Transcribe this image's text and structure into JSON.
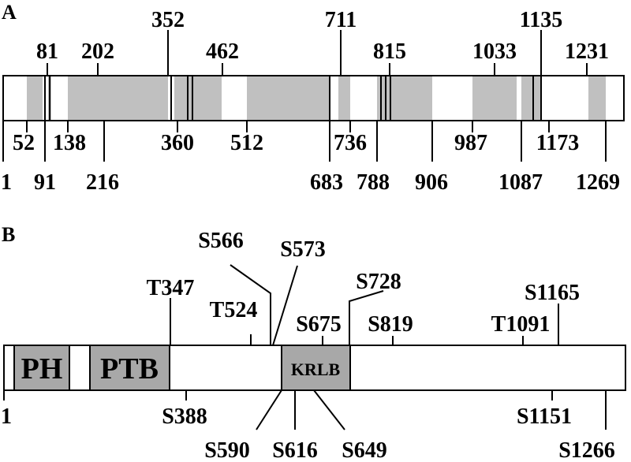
{
  "panel_a": {
    "label": "A",
    "labels_top": [
      "81",
      "202",
      "352",
      "462",
      "711",
      "815",
      "1033",
      "1135",
      "1231"
    ],
    "labels_bottom_1": [
      "52",
      "138",
      "360",
      "512",
      "736",
      "987",
      "1173"
    ],
    "labels_bottom_2": [
      "1",
      "91",
      "216",
      "683",
      "788",
      "906",
      "1087",
      "1269"
    ]
  },
  "panel_b": {
    "label": "B",
    "domains": {
      "ph": "PH",
      "ptb": "PTB",
      "krlb": "KRLB"
    },
    "sites_above": [
      "S566",
      "S573",
      "S728",
      "T347",
      "T524",
      "S675",
      "S819",
      "S1165",
      "T1091"
    ],
    "sites_below": [
      "S388",
      "S1151",
      "S590",
      "S616",
      "S649",
      "S1266"
    ],
    "start_label": "1"
  },
  "colors": {
    "segment_fill": "#c0c0c0",
    "domain_fill": "#a8a8a8",
    "line": "#000000"
  }
}
